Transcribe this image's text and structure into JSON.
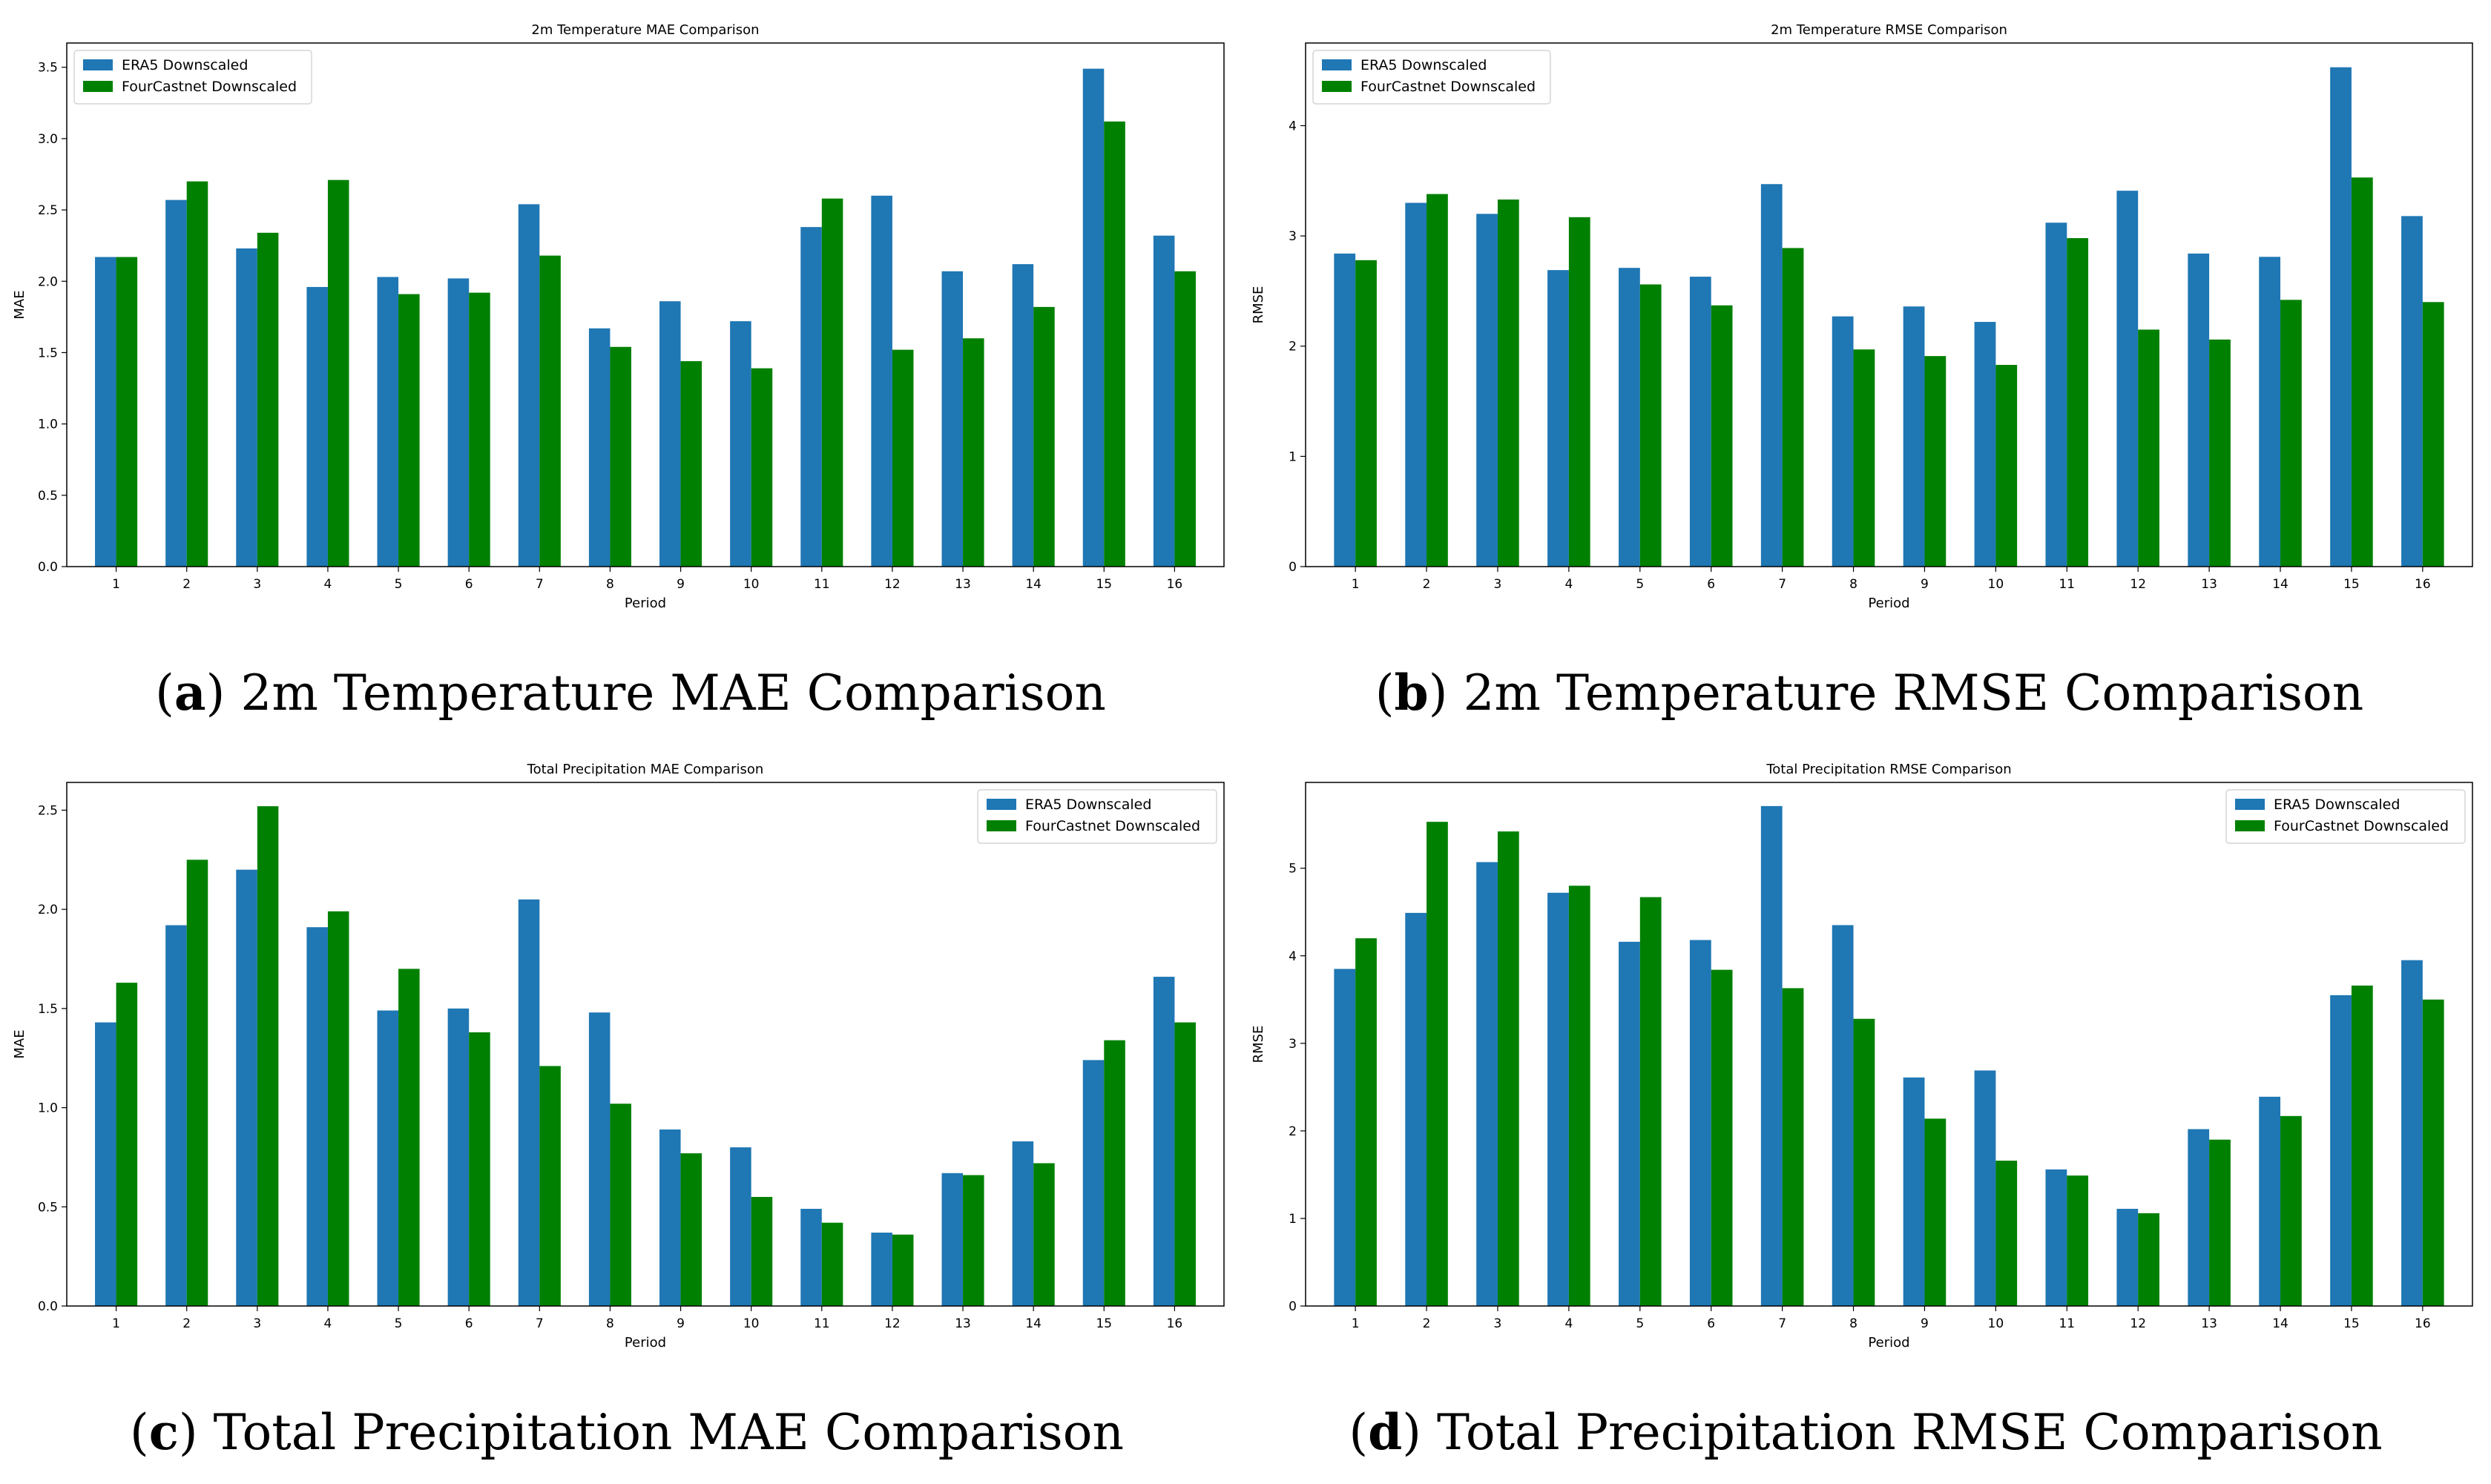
{
  "colors": {
    "era5": "#1f77b4",
    "fourcastnet": "#008000"
  },
  "chart_data": [
    {
      "type": "bar",
      "title": "2m Temperature MAE Comparison",
      "xlabel": "Period",
      "ylabel": "MAE",
      "ylim": [
        0,
        3.67
      ],
      "yticks": [
        "0.0",
        "0.5",
        "1.0",
        "1.5",
        "2.0",
        "2.5",
        "3.0",
        "3.5"
      ],
      "categories": [
        "1",
        "2",
        "3",
        "4",
        "5",
        "6",
        "7",
        "8",
        "9",
        "10",
        "11",
        "12",
        "13",
        "14",
        "15",
        "16"
      ],
      "legend_position": "top-left",
      "series": [
        {
          "name": "ERA5 Downscaled",
          "values": [
            2.17,
            2.57,
            2.23,
            1.96,
            2.03,
            2.02,
            2.54,
            1.67,
            1.86,
            1.72,
            2.38,
            2.6,
            2.07,
            2.12,
            3.49,
            2.32
          ]
        },
        {
          "name": "FourCastnet Downscaled",
          "values": [
            2.17,
            2.7,
            2.34,
            2.71,
            1.91,
            1.92,
            2.18,
            1.54,
            1.44,
            1.39,
            2.58,
            1.52,
            1.6,
            1.82,
            3.12,
            2.07
          ]
        }
      ],
      "caption_letter": "a",
      "caption": "2m Temperature MAE Comparison"
    },
    {
      "type": "bar",
      "title": "2m Temperature RMSE Comparison",
      "xlabel": "Period",
      "ylabel": "RMSE",
      "ylim": [
        0,
        4.75
      ],
      "yticks": [
        "0",
        "1",
        "2",
        "3",
        "4"
      ],
      "categories": [
        "1",
        "2",
        "3",
        "4",
        "5",
        "6",
        "7",
        "8",
        "9",
        "10",
        "11",
        "12",
        "13",
        "14",
        "15",
        "16"
      ],
      "legend_position": "top-left",
      "series": [
        {
          "name": "ERA5 Downscaled",
          "values": [
            2.84,
            3.3,
            3.2,
            2.69,
            2.71,
            2.63,
            3.47,
            2.27,
            2.36,
            2.22,
            3.12,
            3.41,
            2.84,
            2.81,
            4.53,
            3.18
          ]
        },
        {
          "name": "FourCastnet Downscaled",
          "values": [
            2.78,
            3.38,
            3.33,
            3.17,
            2.56,
            2.37,
            2.89,
            1.97,
            1.91,
            1.83,
            2.98,
            2.15,
            2.06,
            2.42,
            3.53,
            2.4
          ]
        }
      ],
      "caption_letter": "b",
      "caption": "2m Temperature RMSE Comparison"
    },
    {
      "type": "bar",
      "title": "Total Precipitation MAE Comparison",
      "xlabel": "Period",
      "ylabel": "MAE",
      "ylim": [
        0,
        2.64
      ],
      "yticks": [
        "0.0",
        "0.5",
        "1.0",
        "1.5",
        "2.0",
        "2.5"
      ],
      "categories": [
        "1",
        "2",
        "3",
        "4",
        "5",
        "6",
        "7",
        "8",
        "9",
        "10",
        "11",
        "12",
        "13",
        "14",
        "15",
        "16"
      ],
      "legend_position": "top-right",
      "series": [
        {
          "name": "ERA5 Downscaled",
          "values": [
            1.43,
            1.92,
            2.2,
            1.91,
            1.49,
            1.5,
            2.05,
            1.48,
            0.89,
            0.8,
            0.49,
            0.37,
            0.67,
            0.83,
            1.24,
            1.66
          ]
        },
        {
          "name": "FourCastnet Downscaled",
          "values": [
            1.63,
            2.25,
            2.52,
            1.99,
            1.7,
            1.38,
            1.21,
            1.02,
            0.77,
            0.55,
            0.42,
            0.36,
            0.66,
            0.72,
            1.34,
            1.43
          ]
        }
      ],
      "caption_letter": "c",
      "caption": "Total Precipitation MAE Comparison"
    },
    {
      "type": "bar",
      "title": "Total Precipitation RMSE Comparison",
      "xlabel": "Period",
      "ylabel": "RMSE",
      "ylim": [
        0,
        5.98
      ],
      "yticks": [
        "0",
        "1",
        "2",
        "3",
        "4",
        "5"
      ],
      "categories": [
        "1",
        "2",
        "3",
        "4",
        "5",
        "6",
        "7",
        "8",
        "9",
        "10",
        "11",
        "12",
        "13",
        "14",
        "15",
        "16"
      ],
      "legend_position": "top-right",
      "series": [
        {
          "name": "ERA5 Downscaled",
          "values": [
            3.85,
            4.49,
            5.07,
            4.72,
            4.16,
            4.18,
            5.71,
            4.35,
            2.61,
            2.69,
            1.56,
            1.11,
            2.02,
            2.39,
            3.55,
            3.95
          ]
        },
        {
          "name": "FourCastnet Downscaled",
          "values": [
            4.2,
            5.53,
            5.42,
            4.8,
            4.67,
            3.84,
            3.63,
            3.28,
            2.14,
            1.66,
            1.49,
            1.06,
            1.9,
            2.17,
            3.66,
            3.5
          ]
        }
      ],
      "caption_letter": "d",
      "caption": "Total Precipitation RMSE Comparison"
    }
  ]
}
